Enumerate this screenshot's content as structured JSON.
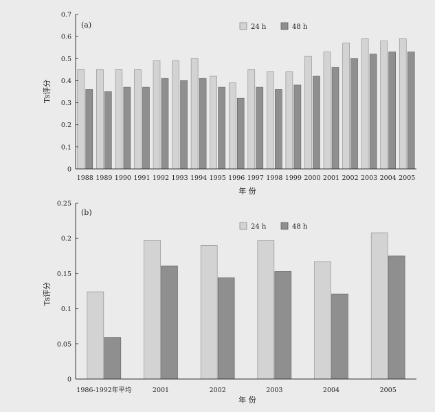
{
  "colors": {
    "background": "#ebebeb",
    "plot_background": "#ebebeb",
    "axis": "#333333",
    "series_24h": "#d3d3d3",
    "series_24h_stroke": "#8a8a8a",
    "series_48h": "#8f8f8f",
    "series_48h_stroke": "#5e5e5e"
  },
  "chart_data": [
    {
      "type": "bar",
      "panel_label": "(a)",
      "title": "",
      "xlabel": "年 份",
      "ylabel": "Ts评分",
      "categories": [
        "1988",
        "1989",
        "1990",
        "1991",
        "1992",
        "1993",
        "1994",
        "1995",
        "1996",
        "1997",
        "1998",
        "1999",
        "2000",
        "2001",
        "2002",
        "2003",
        "2004",
        "2005"
      ],
      "series": [
        {
          "name": "24 h",
          "values": [
            0.45,
            0.45,
            0.45,
            0.45,
            0.49,
            0.49,
            0.5,
            0.42,
            0.39,
            0.45,
            0.44,
            0.44,
            0.51,
            0.53,
            0.57,
            0.59,
            0.58,
            0.59
          ]
        },
        {
          "name": "48 h",
          "values": [
            0.36,
            0.35,
            0.37,
            0.37,
            0.41,
            0.4,
            0.41,
            0.37,
            0.32,
            0.37,
            0.36,
            0.38,
            0.42,
            0.46,
            0.5,
            0.52,
            0.53,
            0.53
          ]
        }
      ],
      "ylim": [
        0,
        0.7
      ],
      "yticks": [
        "0",
        "0.1",
        "0.2",
        "0.3",
        "0.4",
        "0.5",
        "0.6",
        "0.7"
      ],
      "grid": false,
      "legend": "top-right"
    },
    {
      "type": "bar",
      "panel_label": "(b)",
      "title": "",
      "xlabel": "年 份",
      "ylabel": "Ts评分",
      "categories": [
        "1986-1992年平均",
        "2001",
        "2002",
        "2003",
        "2004",
        "2005"
      ],
      "series": [
        {
          "name": "24 h",
          "values": [
            0.124,
            0.197,
            0.19,
            0.197,
            0.167,
            0.208
          ]
        },
        {
          "name": "48 h",
          "values": [
            0.059,
            0.161,
            0.144,
            0.153,
            0.121,
            0.175
          ]
        }
      ],
      "ylim": [
        0,
        0.25
      ],
      "yticks": [
        "0",
        "0.05",
        "0.1",
        "0.15",
        "0.2",
        "0.25"
      ],
      "grid": false,
      "legend": "top-right"
    }
  ]
}
